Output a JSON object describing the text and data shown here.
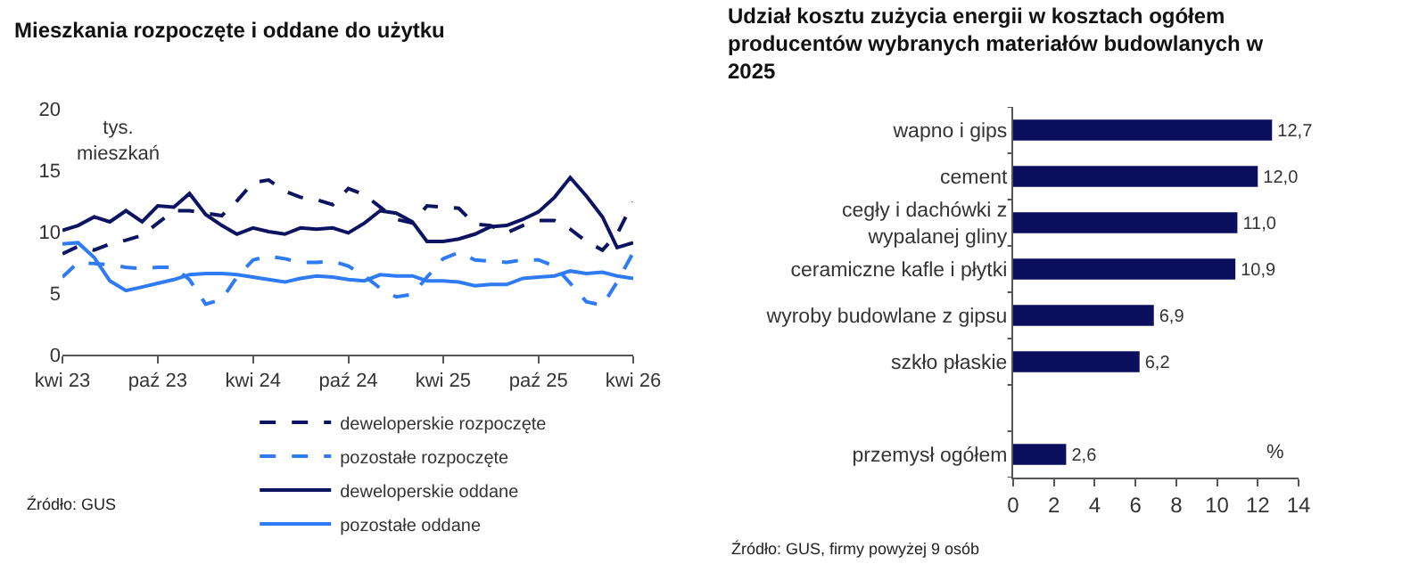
{
  "chart_data": [
    {
      "type": "line",
      "title": "Mieszkania rozpoczęte i oddane do użytku",
      "ylabel": "tys. mieszkań",
      "x": [
        "2023-04",
        "2023-05",
        "2023-06",
        "2023-07",
        "2023-08",
        "2023-09",
        "2023-10",
        "2023-11",
        "2023-12",
        "2024-01",
        "2024-02",
        "2024-03",
        "2024-04",
        "2024-05",
        "2024-06",
        "2024-07",
        "2024-08",
        "2024-09",
        "2024-10",
        "2024-11",
        "2024-12",
        "2025-01",
        "2025-02",
        "2025-03",
        "2025-04",
        "2025-05",
        "2025-06",
        "2025-07",
        "2025-08",
        "2025-09",
        "2025-10",
        "2025-11",
        "2025-12",
        "2026-01",
        "2026-02",
        "2026-03",
        "2026-04"
      ],
      "xlim": [
        "2023-04",
        "2026-04"
      ],
      "xticks": [
        {
          "value": "2023-04",
          "label": "kwi 23"
        },
        {
          "value": "2023-10",
          "label": "paź 23"
        },
        {
          "value": "2024-04",
          "label": "kwi 24"
        },
        {
          "value": "2024-10",
          "label": "paź 24"
        },
        {
          "value": "2025-04",
          "label": "kwi 25"
        },
        {
          "value": "2025-10",
          "label": "paź 25"
        },
        {
          "value": "2026-04",
          "label": "kwi 26"
        }
      ],
      "ylim": [
        0,
        20
      ],
      "yticks": [
        0,
        5,
        10,
        15,
        20
      ],
      "grid": false,
      "legend": "bottom",
      "series": [
        {
          "name": "deweloperskie rozpoczęte",
          "color": "#0c1461",
          "line_style": "dashed",
          "values": [
            8.2,
            8.8,
            8.5,
            9.0,
            9.3,
            9.7,
            10.7,
            11.7,
            11.7,
            11.5,
            11.3,
            12.5,
            14.0,
            14.2,
            13.3,
            12.8,
            12.6,
            12.2,
            13.5,
            13.0,
            12.0,
            11.0,
            10.7,
            12.1,
            12.0,
            11.9,
            10.6,
            10.5,
            9.9,
            10.5,
            10.9,
            10.9,
            10.2,
            9.2,
            8.5,
            9.8,
            12.4
          ]
        },
        {
          "name": "pozostałe rozpoczęte",
          "color": "#2f7bf5",
          "line_style": "dashed",
          "values": [
            6.3,
            7.5,
            7.4,
            7.3,
            7.1,
            7.0,
            7.1,
            7.1,
            6.1,
            4.1,
            4.5,
            6.3,
            7.7,
            8.0,
            7.8,
            7.5,
            7.5,
            7.6,
            7.2,
            6.4,
            5.4,
            4.7,
            4.9,
            6.3,
            7.8,
            8.3,
            7.7,
            7.6,
            7.5,
            7.7,
            7.7,
            7.2,
            5.8,
            4.3,
            4.0,
            5.9,
            8.3
          ]
        },
        {
          "name": "deweloperskie oddane",
          "color": "#0c1461",
          "line_style": "solid",
          "values": [
            10.1,
            10.5,
            11.2,
            10.8,
            11.7,
            10.8,
            12.1,
            12.0,
            13.1,
            11.4,
            10.5,
            9.8,
            10.3,
            10.0,
            9.8,
            10.3,
            10.2,
            10.3,
            9.9,
            10.7,
            11.7,
            11.5,
            10.8,
            9.2,
            9.2,
            9.4,
            9.8,
            10.4,
            10.5,
            11.0,
            11.6,
            12.8,
            14.4,
            12.9,
            11.2,
            8.7,
            9.1
          ]
        },
        {
          "name": "pozostałe oddane",
          "color": "#2f7bf5",
          "line_style": "solid",
          "values": [
            9.0,
            9.1,
            7.9,
            6.0,
            5.2,
            5.5,
            5.8,
            6.1,
            6.5,
            6.6,
            6.6,
            6.5,
            6.3,
            6.1,
            5.9,
            6.2,
            6.4,
            6.3,
            6.1,
            6.0,
            6.5,
            6.4,
            6.4,
            6.0,
            6.0,
            5.9,
            5.6,
            5.7,
            5.7,
            6.2,
            6.3,
            6.4,
            6.8,
            6.6,
            6.7,
            6.4,
            6.2
          ]
        }
      ],
      "annotations": [
        "Źródło: GUS"
      ]
    },
    {
      "type": "bar",
      "orientation": "horizontal",
      "title": "Udział kosztu zużycia energii w kosztach ogółem producentów wybranych materiałów budowlanych w 2025",
      "categories": [
        "wapno i gips",
        "cement",
        "cegły i dachówki z wypalanej gliny",
        "ceramiczne kafle i płytki",
        "wyroby budowlane z gipsu",
        "szkło płaskie",
        null,
        "przemysł ogółem"
      ],
      "values": [
        12.7,
        12.0,
        11.0,
        10.9,
        6.9,
        6.2,
        null,
        2.6
      ],
      "value_labels": [
        "12,7",
        "12,0",
        "11,0",
        "10,9",
        "6,9",
        "6,2",
        null,
        "2,6"
      ],
      "color": "#0c0f5e",
      "xlim": [
        0,
        14
      ],
      "xticks": [
        0,
        2,
        4,
        6,
        8,
        10,
        12,
        14
      ],
      "grid": false,
      "annotations": [
        "%",
        "Źródło: GUS, firmy powyżej 9 osób"
      ]
    }
  ]
}
